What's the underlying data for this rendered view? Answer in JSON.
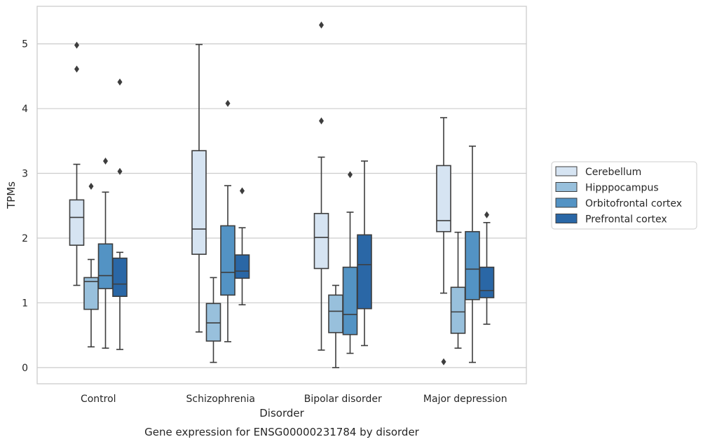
{
  "chart_data": {
    "type": "box",
    "title": "",
    "caption": "Gene expression for ENSG00000231784 by disorder",
    "xlabel": "Disorder",
    "ylabel": "TPMs",
    "ylim": [
      -0.25,
      5.58
    ],
    "yticks": [
      0,
      1,
      2,
      3,
      4,
      5
    ],
    "grid": "horizontal",
    "legend_position": "right",
    "categories": [
      "Control",
      "Schizophrenia",
      "Bipolar disorder",
      "Major depression"
    ],
    "series": [
      {
        "name": "Cerebellum",
        "color": "#d6e4f2",
        "boxes": [
          {
            "whislo": 1.27,
            "q1": 1.89,
            "med": 2.32,
            "q3": 2.59,
            "whishi": 3.14,
            "fliers": [
              4.98,
              4.61
            ]
          },
          {
            "whislo": 0.55,
            "q1": 1.75,
            "med": 2.14,
            "q3": 3.35,
            "whishi": 4.99,
            "fliers": []
          },
          {
            "whislo": 0.27,
            "q1": 1.53,
            "med": 2.01,
            "q3": 2.38,
            "whishi": 3.25,
            "fliers": [
              5.29,
              3.81
            ]
          },
          {
            "whislo": 1.15,
            "q1": 2.1,
            "med": 2.27,
            "q3": 3.12,
            "whishi": 3.86,
            "fliers": [
              0.09
            ]
          }
        ]
      },
      {
        "name": "Hipppocampus",
        "color": "#98c0dc",
        "boxes": [
          {
            "whislo": 0.32,
            "q1": 0.9,
            "med": 1.33,
            "q3": 1.39,
            "whishi": 1.67,
            "fliers": [
              2.8
            ]
          },
          {
            "whislo": 0.08,
            "q1": 0.41,
            "med": 0.69,
            "q3": 0.99,
            "whishi": 1.39,
            "fliers": []
          },
          {
            "whislo": 0.0,
            "q1": 0.54,
            "med": 0.87,
            "q3": 1.12,
            "whishi": 1.27,
            "fliers": []
          },
          {
            "whislo": 0.3,
            "q1": 0.53,
            "med": 0.86,
            "q3": 1.24,
            "whishi": 2.09,
            "fliers": []
          }
        ]
      },
      {
        "name": "Orbitofrontal cortex",
        "color": "#5393c4",
        "boxes": [
          {
            "whislo": 0.3,
            "q1": 1.22,
            "med": 1.42,
            "q3": 1.91,
            "whishi": 2.71,
            "fliers": [
              3.19
            ]
          },
          {
            "whislo": 0.4,
            "q1": 1.12,
            "med": 1.47,
            "q3": 2.19,
            "whishi": 2.81,
            "fliers": [
              4.08
            ]
          },
          {
            "whislo": 0.22,
            "q1": 0.51,
            "med": 0.82,
            "q3": 1.55,
            "whishi": 2.4,
            "fliers": [
              2.98
            ]
          },
          {
            "whislo": 0.08,
            "q1": 1.05,
            "med": 1.52,
            "q3": 2.1,
            "whishi": 3.42,
            "fliers": []
          }
        ]
      },
      {
        "name": "Prefrontal cortex",
        "color": "#2a67a6",
        "boxes": [
          {
            "whislo": 0.28,
            "q1": 1.1,
            "med": 1.29,
            "q3": 1.69,
            "whishi": 1.78,
            "fliers": [
              4.41,
              3.03
            ]
          },
          {
            "whislo": 0.97,
            "q1": 1.38,
            "med": 1.49,
            "q3": 1.74,
            "whishi": 2.16,
            "fliers": [
              2.73
            ]
          },
          {
            "whislo": 0.34,
            "q1": 0.91,
            "med": 1.59,
            "q3": 2.05,
            "whishi": 3.19,
            "fliers": []
          },
          {
            "whislo": 0.67,
            "q1": 1.08,
            "med": 1.19,
            "q3": 1.55,
            "whishi": 2.24,
            "fliers": [
              2.36
            ]
          }
        ]
      }
    ]
  }
}
